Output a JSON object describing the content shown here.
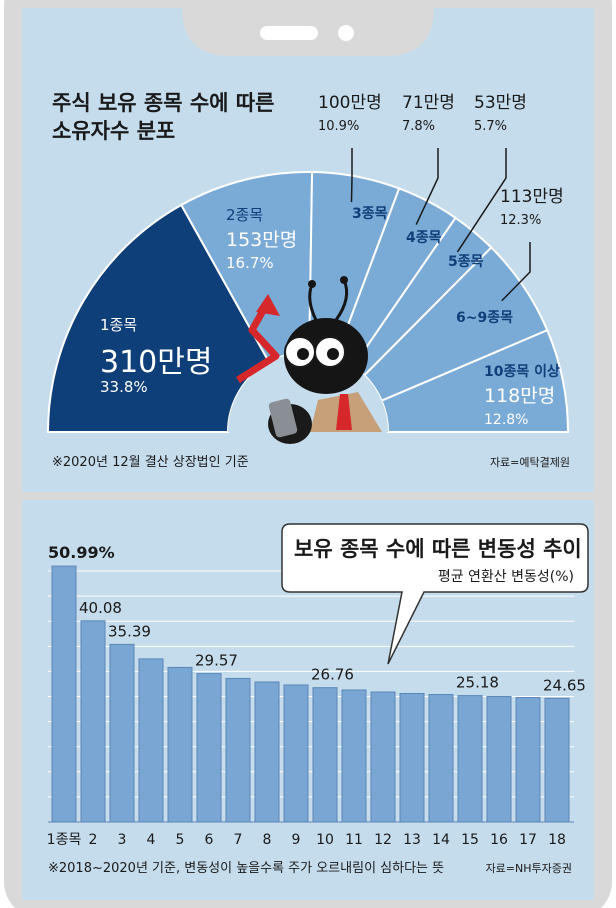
{
  "colors": {
    "phone_frame": "#d9d9d9",
    "panel_bg": "#c5dcec",
    "light_sector": "#7aaad6",
    "dark_sector": "#0f3f78",
    "sector_line": "#ffffff",
    "bar_fill": "#7aa6d4",
    "bar_stroke": "#5a86b8",
    "text": "#1a1a1a",
    "label_dark": "#0f3f78",
    "arrow_red": "#d6282b"
  },
  "top_chart": {
    "title_line1": "주식 보유 종목 수에 따른",
    "title_line2": "소유자수 분포",
    "footnote": "※2020년 12월 결산 상장법인 기준",
    "source": "자료=예탁결제원"
  },
  "bottom_chart": {
    "title": "보유 종목 수에 따른 변동성 추이",
    "subtitle": "평균 연환산 변동성(%)",
    "footnote": "※2018~2020년 기준, 변동성이 높을수록 주가 오르내림이 심하다는 뜻",
    "source": "자료=NH투자증권"
  },
  "chart_data": [
    {
      "type": "pie",
      "shape": "semicircle",
      "title": "주식 보유 종목 수에 따른 소유자수 분포",
      "slices": [
        {
          "label": "1종목",
          "count": "310만명",
          "value": 33.8,
          "pct": "33.8%"
        },
        {
          "label": "2종목",
          "count": "153만명",
          "value": 16.7,
          "pct": "16.7%"
        },
        {
          "label": "3종목",
          "count": "100만명",
          "value": 10.9,
          "pct": "10.9%"
        },
        {
          "label": "4종목",
          "count": "71만명",
          "value": 7.8,
          "pct": "7.8%"
        },
        {
          "label": "5종목",
          "count": "53만명",
          "value": 5.7,
          "pct": "5.7%"
        },
        {
          "label": "6~9종목",
          "count": "113만명",
          "value": 12.3,
          "pct": "12.3%"
        },
        {
          "label": "10종목 이상",
          "count": "118만명",
          "value": 12.8,
          "pct": "12.8%"
        }
      ]
    },
    {
      "type": "bar",
      "title": "보유 종목 수에 따른 변동성 추이",
      "ylabel": "평균 연환산 변동성(%)",
      "categories": [
        "1종목",
        "2",
        "3",
        "4",
        "5",
        "6",
        "7",
        "8",
        "9",
        "10",
        "11",
        "12",
        "13",
        "14",
        "15",
        "16",
        "17",
        "18"
      ],
      "values": [
        50.99,
        40.08,
        35.39,
        32.5,
        30.8,
        29.57,
        28.6,
        27.9,
        27.3,
        26.76,
        26.3,
        25.9,
        25.6,
        25.4,
        25.18,
        25.0,
        24.8,
        24.65
      ],
      "data_labels": [
        "50.99%",
        "40.08",
        "35.39",
        "",
        "",
        "29.57",
        "",
        "",
        "",
        "26.76",
        "",
        "",
        "",
        "",
        "25.18",
        "",
        "",
        "24.65"
      ],
      "ylim": [
        0,
        53
      ],
      "grid": true
    }
  ]
}
